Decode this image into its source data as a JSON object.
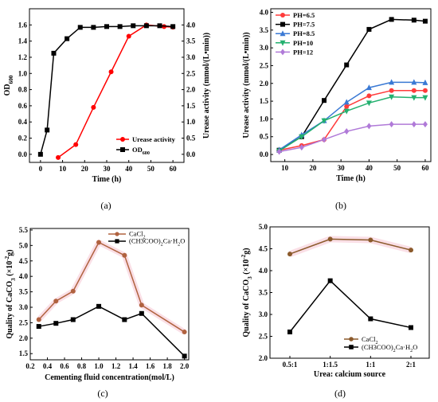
{
  "chart_data": [
    {
      "type": "line",
      "panel": "a",
      "caption": "(a)",
      "xlabel": "Time (h)",
      "ylabel": "OD",
      "ylabel_sub": "600",
      "y2label": "Urease activity (mmol/(L•min))",
      "xlim": [
        -5,
        65
      ],
      "ylim": [
        -0.1,
        1.8
      ],
      "y2lim": [
        -0.25,
        4.5
      ],
      "xticks": [
        0,
        10,
        20,
        30,
        40,
        50,
        60
      ],
      "yticks": [
        0.0,
        0.2,
        0.4,
        0.6,
        0.8,
        1.0,
        1.2,
        1.4,
        1.6
      ],
      "y2ticks": [
        0.0,
        0.5,
        1.0,
        1.5,
        2.0,
        2.5,
        3.0,
        3.5,
        4.0
      ],
      "ytick_labels": [
        "0.0",
        "0.2",
        "0.4",
        "0.6",
        "0.8",
        "1.0",
        "1.2",
        "1.4",
        "1.6"
      ],
      "y2tick_labels": [
        "0.0",
        "0.5",
        "1.0",
        "1.5",
        "2.0",
        "2.5",
        "3.0",
        "3.5",
        "4.0"
      ],
      "legend_position": "bottom-right",
      "series": [
        {
          "name": "Urease activity",
          "color": "#ff0000",
          "marker": "circle",
          "axis": "right",
          "x": [
            8,
            16,
            24,
            32,
            40,
            48,
            56,
            60
          ],
          "y": [
            -0.1,
            0.3,
            1.45,
            2.55,
            3.65,
            4.0,
            3.95,
            3.93
          ]
        },
        {
          "name": "OD",
          "name_sub": "600",
          "color": "#000000",
          "marker": "square",
          "axis": "left",
          "x": [
            0,
            3,
            6,
            12,
            18,
            24,
            30,
            36,
            42,
            48,
            54,
            60
          ],
          "y": [
            0.0,
            0.3,
            1.25,
            1.43,
            1.57,
            1.57,
            1.58,
            1.58,
            1.59,
            1.59,
            1.59,
            1.58
          ]
        }
      ]
    },
    {
      "type": "line",
      "panel": "b",
      "caption": "(b)",
      "xlabel": "Time (h)",
      "ylabel": "Urease activity (mmol/(L•min))",
      "xlim": [
        5,
        62
      ],
      "ylim": [
        -0.2,
        4.1
      ],
      "xticks": [
        10,
        20,
        30,
        40,
        50,
        60
      ],
      "yticks": [
        0.0,
        0.5,
        1.0,
        1.5,
        2.0,
        2.5,
        3.0,
        3.5,
        4.0
      ],
      "ytick_labels": [
        "0.0",
        "0.5",
        "1.0",
        "1.5",
        "2.0",
        "2.5",
        "3.0",
        "3.5",
        "4.0"
      ],
      "legend_position": "top-left",
      "series": [
        {
          "name": "PH=6.5",
          "color": "#ff3b3b",
          "marker": "circle",
          "x": [
            8,
            16,
            24,
            32,
            40,
            48,
            56,
            60
          ],
          "y": [
            0.12,
            0.25,
            0.42,
            1.35,
            1.65,
            1.8,
            1.8,
            1.8
          ]
        },
        {
          "name": "PH=7.5",
          "color": "#000000",
          "marker": "square",
          "x": [
            8,
            16,
            24,
            32,
            40,
            48,
            56,
            60
          ],
          "y": [
            0.12,
            0.5,
            1.52,
            2.52,
            3.52,
            3.8,
            3.78,
            3.75
          ]
        },
        {
          "name": "PH=8.5",
          "color": "#3a79d4",
          "marker": "triangle-up",
          "x": [
            8,
            16,
            24,
            32,
            40,
            48,
            56,
            60
          ],
          "y": [
            0.13,
            0.55,
            0.95,
            1.47,
            1.88,
            2.03,
            2.03,
            2.02
          ]
        },
        {
          "name": "PH=10",
          "color": "#23b06f",
          "marker": "triangle-down",
          "x": [
            8,
            16,
            24,
            32,
            40,
            48,
            56,
            60
          ],
          "y": [
            0.1,
            0.5,
            0.95,
            1.22,
            1.45,
            1.62,
            1.6,
            1.6
          ]
        },
        {
          "name": "PH=12",
          "color": "#b07ad8",
          "marker": "diamond",
          "x": [
            8,
            16,
            24,
            32,
            40,
            48,
            56,
            60
          ],
          "y": [
            0.08,
            0.2,
            0.42,
            0.65,
            0.8,
            0.85,
            0.85,
            0.85
          ]
        }
      ]
    },
    {
      "type": "line",
      "panel": "c",
      "caption": "(c)",
      "xlabel": "Cementing fluid concentration(mol/L)",
      "ylabel_pre": "Quality of CaCO",
      "ylabel_sub": "3",
      "ylabel_post": " (×10",
      "ylabel_sup": "-2",
      "ylabel_end": "g)",
      "xlim": [
        0.2,
        2.05
      ],
      "ylim": [
        1.3,
        5.55
      ],
      "xticks": [
        0.2,
        0.4,
        0.6,
        0.8,
        1.0,
        1.2,
        1.4,
        1.6,
        1.8,
        2.0
      ],
      "xtick_labels": [
        "0.2",
        "0.4",
        "0.6",
        "0.8",
        "1.0",
        "1.2",
        "1.4",
        "1.6",
        "1.8",
        "2.0"
      ],
      "yticks": [
        1.5,
        2.0,
        2.5,
        3.0,
        3.5,
        4.0,
        4.5,
        5.0,
        5.5
      ],
      "ytick_labels": [
        "1.5",
        "2.0",
        "2.5",
        "3.0",
        "3.5",
        "4.0",
        "4.5",
        "5.0",
        "5.5"
      ],
      "legend_position": "top-left",
      "series": [
        {
          "name": "CaCl",
          "name_sub": "2",
          "color": "#b0623f",
          "marker": "circle",
          "x": [
            0.3,
            0.5,
            0.7,
            1.0,
            1.3,
            1.5,
            2.0
          ],
          "y": [
            2.6,
            3.2,
            3.52,
            5.1,
            4.68,
            3.07,
            2.2
          ]
        },
        {
          "name": "(CH3COO)",
          "name_sub": "2",
          "name_post": "Ca·H",
          "name_sub2": "2",
          "name_end": "O",
          "color": "#000000",
          "marker": "square",
          "x": [
            0.3,
            0.5,
            0.7,
            1.0,
            1.3,
            1.5,
            2.0
          ],
          "y": [
            2.38,
            2.48,
            2.6,
            3.03,
            2.6,
            2.8,
            1.42
          ]
        }
      ]
    },
    {
      "type": "line",
      "panel": "d",
      "caption": "(d)",
      "xlabel": "Urea: calcium source",
      "ylabel_pre": "Quality of CaCO",
      "ylabel_sub": "3",
      "ylabel_post": " (×10",
      "ylabel_sup": "-2",
      "ylabel_end": "g)",
      "categories": [
        "0.5:1",
        "1:1.5",
        "1:1",
        "2:1"
      ],
      "ylim": [
        2.0,
        5.0
      ],
      "yticks": [
        2.0,
        2.5,
        3.0,
        3.5,
        4.0,
        4.5,
        5.0
      ],
      "ytick_labels": [
        "2.0",
        "2.5",
        "3.0",
        "3.5",
        "4.0",
        "4.5",
        "5.0"
      ],
      "legend_position": "bottom-right",
      "series": [
        {
          "name": "CaCl",
          "name_sub": "2",
          "color": "#8b5a2b",
          "marker": "circle",
          "values": [
            4.38,
            4.72,
            4.7,
            4.47
          ]
        },
        {
          "name": "(CH3COO)",
          "name_sub": "2",
          "name_post": "Ca·H",
          "name_sub2": "2",
          "name_end": "O",
          "color": "#000000",
          "marker": "square",
          "values": [
            2.6,
            3.77,
            2.9,
            2.7
          ]
        }
      ]
    }
  ]
}
